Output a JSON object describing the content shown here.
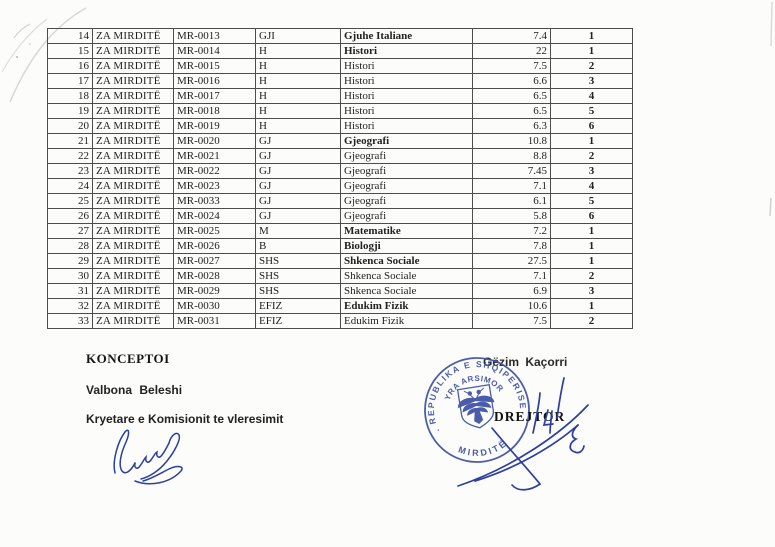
{
  "table": {
    "rows": [
      {
        "no": "14",
        "office": "ZA MIRDITË",
        "code": "MR-0013",
        "subject_code": "GJI",
        "subject": "Gjuhe Italiane",
        "score": "7.4",
        "rank": "1",
        "bold": true
      },
      {
        "no": "15",
        "office": "ZA MIRDITË",
        "code": "MR-0014",
        "subject_code": "H",
        "subject": "Histori",
        "score": "22",
        "rank": "1",
        "bold": true
      },
      {
        "no": "16",
        "office": "ZA MIRDITË",
        "code": "MR-0015",
        "subject_code": "H",
        "subject": "Histori",
        "score": "7.5",
        "rank": "2",
        "bold": false
      },
      {
        "no": "17",
        "office": "ZA MIRDITË",
        "code": "MR-0016",
        "subject_code": "H",
        "subject": "Histori",
        "score": "6.6",
        "rank": "3",
        "bold": false
      },
      {
        "no": "18",
        "office": "ZA MIRDITË",
        "code": "MR-0017",
        "subject_code": "H",
        "subject": "Histori",
        "score": "6.5",
        "rank": "4",
        "bold": false
      },
      {
        "no": "19",
        "office": "ZA MIRDITË",
        "code": "MR-0018",
        "subject_code": "H",
        "subject": "Histori",
        "score": "6.5",
        "rank": "5",
        "bold": false
      },
      {
        "no": "20",
        "office": "ZA MIRDITË",
        "code": "MR-0019",
        "subject_code": "H",
        "subject": "Histori",
        "score": "6.3",
        "rank": "6",
        "bold": false
      },
      {
        "no": "21",
        "office": "ZA MIRDITË",
        "code": "MR-0020",
        "subject_code": "GJ",
        "subject": "Gjeografi",
        "score": "10.8",
        "rank": "1",
        "bold": true
      },
      {
        "no": "22",
        "office": "ZA MIRDITË",
        "code": "MR-0021",
        "subject_code": "GJ",
        "subject": "Gjeografi",
        "score": "8.8",
        "rank": "2",
        "bold": false
      },
      {
        "no": "23",
        "office": "ZA MIRDITË",
        "code": "MR-0022",
        "subject_code": "GJ",
        "subject": "Gjeografi",
        "score": "7.45",
        "rank": "3",
        "bold": false
      },
      {
        "no": "24",
        "office": "ZA MIRDITË",
        "code": "MR-0023",
        "subject_code": "GJ",
        "subject": "Gjeografi",
        "score": "7.1",
        "rank": "4",
        "bold": false
      },
      {
        "no": "25",
        "office": "ZA MIRDITË",
        "code": "MR-0033",
        "subject_code": "GJ",
        "subject": "Gjeografi",
        "score": "6.1",
        "rank": "5",
        "bold": false
      },
      {
        "no": "26",
        "office": "ZA MIRDITË",
        "code": "MR-0024",
        "subject_code": "GJ",
        "subject": "Gjeografi",
        "score": "5.8",
        "rank": "6",
        "bold": false
      },
      {
        "no": "27",
        "office": "ZA MIRDITË",
        "code": "MR-0025",
        "subject_code": "M",
        "subject": "Matematike",
        "score": "7.2",
        "rank": "1",
        "bold": true
      },
      {
        "no": "28",
        "office": "ZA MIRDITË",
        "code": "MR-0026",
        "subject_code": "B",
        "subject": "Biologji",
        "score": "7.8",
        "rank": "1",
        "bold": true
      },
      {
        "no": "29",
        "office": "ZA MIRDITË",
        "code": "MR-0027",
        "subject_code": "SHS",
        "subject": "Shkenca Sociale",
        "score": "27.5",
        "rank": "1",
        "bold": true
      },
      {
        "no": "30",
        "office": "ZA MIRDITË",
        "code": "MR-0028",
        "subject_code": "SHS",
        "subject": "Shkenca Sociale",
        "score": "7.1",
        "rank": "2",
        "bold": false
      },
      {
        "no": "31",
        "office": "ZA MIRDITË",
        "code": "MR-0029",
        "subject_code": "SHS",
        "subject": "Shkenca Sociale",
        "score": "6.9",
        "rank": "3",
        "bold": false
      },
      {
        "no": "32",
        "office": "ZA MIRDITË",
        "code": "MR-0030",
        "subject_code": "EFIZ",
        "subject": "Edukim Fizik",
        "score": "10.6",
        "rank": "1",
        "bold": true
      },
      {
        "no": "33",
        "office": "ZA MIRDITË",
        "code": "MR-0031",
        "subject_code": "EFIZ",
        "subject": "Edukim Fizik",
        "score": "7.5",
        "rank": "2",
        "bold": false
      }
    ]
  },
  "footer": {
    "konceptoi_label": "KONCEPTOI",
    "author_name": "Valbona Beleshi",
    "author_title": "Kryetare e Komisionit te vleresimit",
    "director_name": "Gëzim Kaçorri",
    "director_title": "DREJTOR"
  },
  "stamp": {
    "outer_text": ". REPUBLIKA E SHQIPERISE .",
    "inner_text": "ZYRA ARSIMORE",
    "bottom_text": "MIRDITË",
    "color": "#3c50a4"
  },
  "ink_color": "#2c3fa0"
}
